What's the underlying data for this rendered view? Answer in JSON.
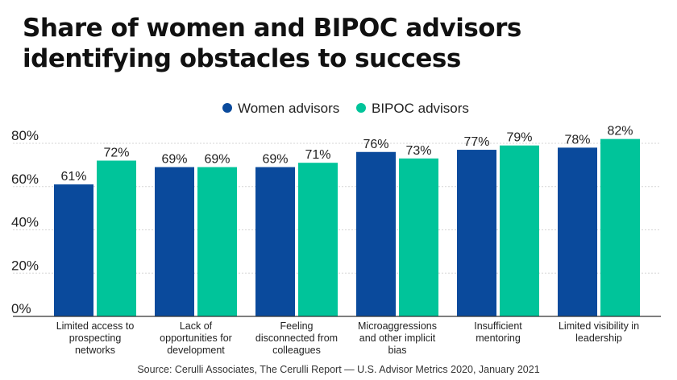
{
  "title": "Share of women and BIPOC advisors identifying obstacles to success",
  "colors": {
    "women": "#0a4a9c",
    "bipoc": "#00c49a",
    "grid": "#d6d6d6",
    "axis": "#333333"
  },
  "chart_data": {
    "type": "bar",
    "title": "Share of women and BIPOC advisors identifying obstacles to success",
    "categories": [
      [
        "Limited access to",
        "prospecting",
        "networks"
      ],
      [
        "Lack of",
        "opportunities for",
        "development"
      ],
      [
        "Feeling",
        "disconnected from",
        "colleagues"
      ],
      [
        "Microaggressions",
        "and other implicit",
        "bias"
      ],
      [
        "Insufficient",
        "mentoring"
      ],
      [
        "Limited visibility in",
        "leadership"
      ]
    ],
    "series": [
      {
        "name": "Women advisors",
        "values": [
          61,
          69,
          69,
          76,
          77,
          78
        ]
      },
      {
        "name": "BIPOC advisors",
        "values": [
          72,
          69,
          71,
          73,
          79,
          82
        ]
      }
    ],
    "value_suffix": "%",
    "yticks": [
      "0%",
      "20%",
      "40%",
      "60%",
      "80%"
    ],
    "ylim": [
      0,
      80
    ],
    "grid": true,
    "legend_position": "top-center"
  },
  "source": "Source: Cerulli Associates, The Cerulli Report — U.S. Advisor Metrics 2020, January 2021"
}
